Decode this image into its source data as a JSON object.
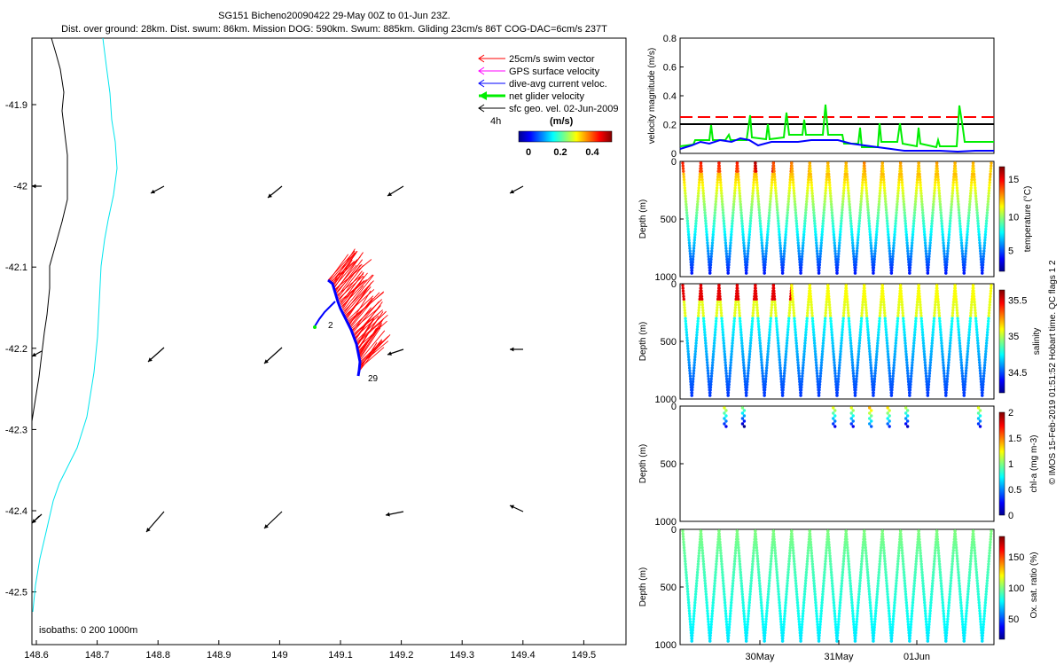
{
  "header": {
    "line1": "SG151 Bicheno20090422 29-May 00Z to 01-Jun 23Z.",
    "line2": "Dist. over ground: 28km. Dist. swum: 86km. Mission DOG: 590km. Swum: 885km. Gliding 23cm/s 86T COG-DAC=6cm/s 237T"
  },
  "credit": "© IMOS 15-Feb-2019 01:51:52 Hobart time. QC flags 1  2",
  "map": {
    "x_ticks": [
      "148.6",
      "148.7",
      "148.8",
      "148.9",
      "149",
      "149.1",
      "149.2",
      "149.3",
      "149.4",
      "149.5"
    ],
    "y_ticks": [
      "-41.9",
      "-42",
      "-42.1",
      "-42.2",
      "-42.3",
      "-42.4",
      "-42.5"
    ],
    "legend": [
      {
        "label": "25cm/s swim vector",
        "color": "#ff0000"
      },
      {
        "label": "GPS surface velocity",
        "color": "#ff00ff"
      },
      {
        "label": "dive-avg current veloc.",
        "color": "#0000ff"
      },
      {
        "label": "net glider velocity",
        "color": "#00ee00"
      },
      {
        "label": "sfc geo. vel. 02-Jun-2009",
        "color": "#000000"
      }
    ],
    "time_step_label": "4h",
    "colorbar_unit": "(m/s)",
    "colorbar_ticks": [
      "0",
      "0.2",
      "0.4"
    ],
    "track_labels": [
      "2",
      "29"
    ],
    "isobaths_label": "isobaths: 0   200  1000m",
    "colors": {
      "coast": "#000000",
      "isobath_200": "#00e5ee",
      "swim": "#ff0000",
      "track": "#0000ff",
      "current": "#000000"
    }
  },
  "panels": [
    {
      "ylabel": "velocity magnitude (m/s)",
      "y_ticks": [
        "0",
        "0.2",
        "0.4",
        "0.6",
        "0.8"
      ]
    },
    {
      "ylabel": "Depth (m)",
      "y_ticks": [
        "0",
        "500",
        "1000"
      ],
      "cbar_label": "temperature (°C)",
      "cbar_ticks": [
        "5",
        "10",
        "15"
      ]
    },
    {
      "ylabel": "Depth (m)",
      "y_ticks": [
        "0",
        "500",
        "1000"
      ],
      "cbar_label": "salinity",
      "cbar_ticks": [
        "34.5",
        "35",
        "35.5"
      ]
    },
    {
      "ylabel": "Depth (m)",
      "y_ticks": [
        "0",
        "500",
        "1000"
      ],
      "cbar_label": "chl-a (mg m-3)",
      "cbar_ticks": [
        "0",
        "0.5",
        "1",
        "1.5",
        "2"
      ]
    },
    {
      "ylabel": "Depth (m)",
      "y_ticks": [
        "0",
        "500",
        "1000"
      ],
      "cbar_label": "Ox. sat. ratio (%)",
      "cbar_ticks": [
        "50",
        "100",
        "150"
      ]
    }
  ],
  "time_axis": {
    "ticks": [
      "30May",
      "31May",
      "01Jun"
    ]
  },
  "chart_data": {
    "type": "scatter",
    "velocity_panel": {
      "ylim": [
        0,
        0.8
      ],
      "series": [
        {
          "color": "#ff0000",
          "style": "dashed",
          "value": 0.25
        },
        {
          "color": "#000000",
          "style": "solid",
          "value": 0.2
        },
        {
          "color": "#00ee00",
          "style": "solid",
          "note": "spiky net glider velocity, base 0.05–0.15, peaks to 0.33"
        },
        {
          "color": "#0000ff",
          "style": "solid",
          "note": "dive-avg current, 0.02–0.1"
        }
      ]
    },
    "dive_profiles": {
      "count": 17,
      "depth_range": [
        0,
        1000
      ]
    }
  }
}
